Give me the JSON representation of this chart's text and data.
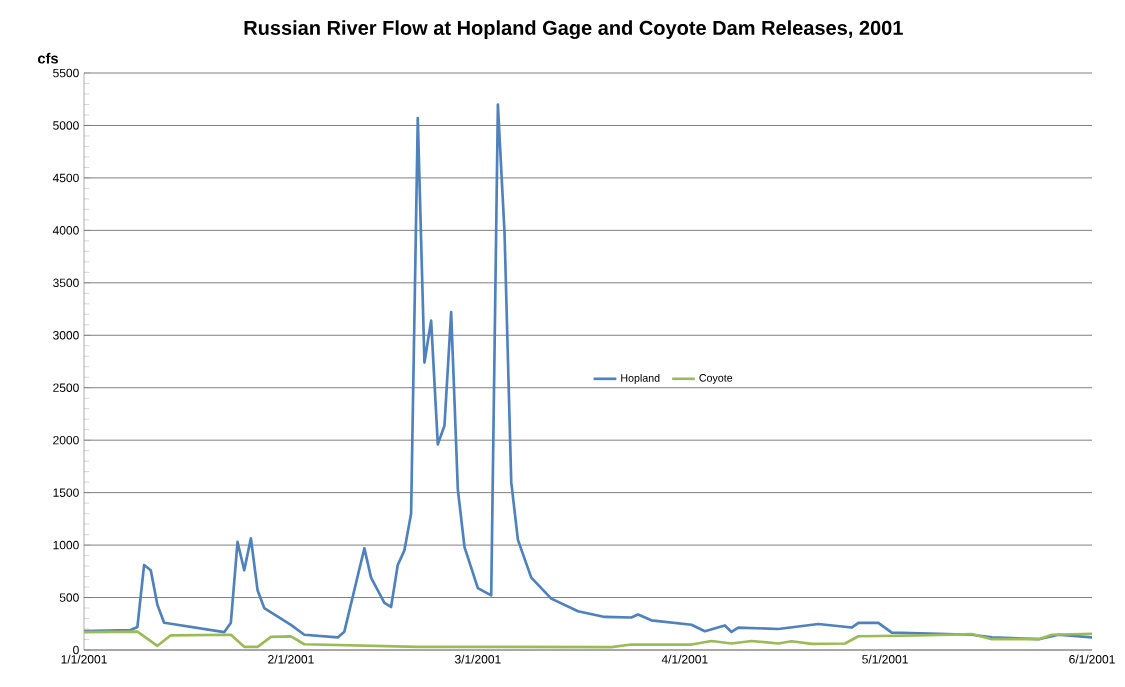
{
  "chart_data": {
    "type": "line",
    "title": "Russian River Flow at Hopland Gage and Coyote Dam Releases, 2001",
    "ylabel": "cfs",
    "xlim": [
      "2001-01-01",
      "2001-06-01"
    ],
    "xticks": [
      {
        "value": "2001-01-01",
        "label": "1/1/2001"
      },
      {
        "value": "2001-02-01",
        "label": "2/1/2001"
      },
      {
        "value": "2001-03-01",
        "label": "3/1/2001"
      },
      {
        "value": "2001-04-01",
        "label": "4/1/2001"
      },
      {
        "value": "2001-05-01",
        "label": "5/1/2001"
      },
      {
        "value": "2001-06-01",
        "label": "6/1/2001"
      }
    ],
    "ylim": [
      0,
      5500
    ],
    "yticks": [
      0,
      500,
      1000,
      1500,
      2000,
      2500,
      3000,
      3500,
      4000,
      4500,
      5000,
      5500
    ],
    "grid": "y",
    "legend": "center",
    "marker": "none",
    "line_style": "solid",
    "series": [
      {
        "name": "Hopland",
        "color": "#4f81bd",
        "x": [
          "2001-01-01",
          "2001-01-08",
          "2001-01-09",
          "2001-01-10",
          "2001-01-11",
          "2001-01-12",
          "2001-01-13",
          "2001-01-14",
          "2001-01-22",
          "2001-01-23",
          "2001-01-24",
          "2001-01-25",
          "2001-01-26",
          "2001-01-27",
          "2001-01-28",
          "2001-02-01",
          "2001-02-03",
          "2001-02-08",
          "2001-02-09",
          "2001-02-12",
          "2001-02-13",
          "2001-02-15",
          "2001-02-16",
          "2001-02-17",
          "2001-02-18",
          "2001-02-19",
          "2001-02-20",
          "2001-02-21",
          "2001-02-22",
          "2001-02-23",
          "2001-02-24",
          "2001-02-25",
          "2001-02-26",
          "2001-02-27",
          "2001-03-01",
          "2001-03-03",
          "2001-03-04",
          "2001-03-05",
          "2001-03-06",
          "2001-03-07",
          "2001-03-09",
          "2001-03-12",
          "2001-03-16",
          "2001-03-20",
          "2001-03-24",
          "2001-03-25",
          "2001-03-27",
          "2001-04-02",
          "2001-04-04",
          "2001-04-07",
          "2001-04-08",
          "2001-04-09",
          "2001-04-15",
          "2001-04-21",
          "2001-04-26",
          "2001-04-27",
          "2001-04-30",
          "2001-05-02",
          "2001-05-09",
          "2001-05-14",
          "2001-05-17",
          "2001-05-24",
          "2001-05-27",
          "2001-06-01"
        ],
        "values": [
          180,
          190,
          220,
          810,
          760,
          430,
          260,
          250,
          170,
          260,
          1030,
          760,
          1065,
          570,
          400,
          240,
          145,
          120,
          175,
          970,
          690,
          450,
          410,
          810,
          950,
          1300,
          5070,
          2740,
          3140,
          1960,
          2140,
          3220,
          1530,
          980,
          590,
          520,
          5200,
          3970,
          1600,
          1050,
          690,
          490,
          370,
          315,
          310,
          338,
          283,
          241,
          179,
          234,
          172,
          214,
          200,
          248,
          214,
          259,
          259,
          166,
          155,
          145,
          121,
          103,
          145,
          120
        ]
      },
      {
        "name": "Coyote",
        "color": "#9bbb59",
        "x": [
          "2001-01-01",
          "2001-01-09",
          "2001-01-12",
          "2001-01-14",
          "2001-01-23",
          "2001-01-25",
          "2001-01-27",
          "2001-01-29",
          "2001-02-01",
          "2001-02-03",
          "2001-02-20",
          "2001-03-21",
          "2001-03-24",
          "2001-04-02",
          "2001-04-05",
          "2001-04-08",
          "2001-04-11",
          "2001-04-15",
          "2001-04-17",
          "2001-04-20",
          "2001-04-25",
          "2001-04-27",
          "2001-05-06",
          "2001-05-14",
          "2001-05-17",
          "2001-05-24",
          "2001-05-26",
          "2001-06-01"
        ],
        "values": [
          170,
          175,
          40,
          140,
          145,
          30,
          30,
          125,
          130,
          55,
          30,
          28,
          52,
          52,
          86,
          62,
          86,
          62,
          83,
          59,
          62,
          131,
          138,
          152,
          103,
          103,
          145,
          155
        ]
      }
    ]
  }
}
